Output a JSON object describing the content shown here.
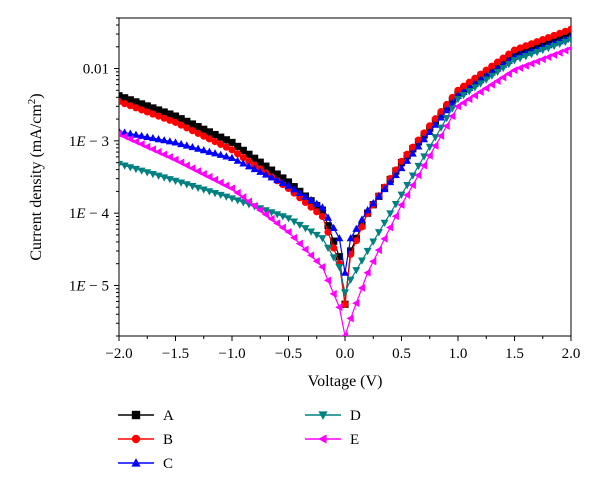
{
  "chart_data": {
    "type": "scatter",
    "xlabel": "Voltage (V)",
    "ylabel": "Current density (mA/cm²)",
    "ylabel_main": "Current density (mA/cm",
    "ylabel_sup": "2",
    "ylabel_close": ")",
    "xlim": [
      -2.0,
      2.0
    ],
    "ylim": [
      2e-06,
      0.05
    ],
    "yscale": "log",
    "grid": false,
    "legend_placement": "bottom",
    "xticks": [
      {
        "value": -2.0,
        "label": "−2.0"
      },
      {
        "value": -1.5,
        "label": "−1.5"
      },
      {
        "value": -1.0,
        "label": "−1.0"
      },
      {
        "value": -0.5,
        "label": "−0.5"
      },
      {
        "value": 0.0,
        "label": "0.0"
      },
      {
        "value": 0.5,
        "label": "0.5"
      },
      {
        "value": 1.0,
        "label": "1.0"
      },
      {
        "value": 1.5,
        "label": "1.5"
      },
      {
        "value": 2.0,
        "label": "2.0"
      }
    ],
    "yticks": [
      {
        "value": 0.01,
        "label": "0.01"
      },
      {
        "value": 0.001,
        "label": "1E − 3"
      },
      {
        "value": 0.0001,
        "label": "1E − 4"
      },
      {
        "value": 1e-05,
        "label": "1E − 5"
      }
    ],
    "series": [
      {
        "name": "A",
        "color": "#000000",
        "marker": "square",
        "x": [
          -2.0,
          -1.5,
          -1.0,
          -0.5,
          -0.2,
          -0.05,
          0.0,
          0.05,
          0.2,
          0.5,
          1.0,
          1.5,
          2.0
        ],
        "y": [
          0.0042,
          0.0022,
          0.00095,
          0.00027,
          0.00011,
          2.5e-05,
          5.5e-06,
          3e-05,
          0.0001,
          0.0005,
          0.0045,
          0.0165,
          0.032
        ]
      },
      {
        "name": "B",
        "color": "#ff0000",
        "marker": "circle",
        "x": [
          -2.0,
          -1.5,
          -1.0,
          -0.5,
          -0.2,
          -0.05,
          0.0,
          0.05,
          0.2,
          0.5,
          1.0,
          1.5,
          2.0
        ],
        "y": [
          0.0035,
          0.0018,
          0.00075,
          0.00022,
          9e-05,
          2e-05,
          5.5e-06,
          2.7e-05,
          0.0001,
          0.00052,
          0.005,
          0.018,
          0.035
        ]
      },
      {
        "name": "C",
        "color": "#0000ff",
        "marker": "triangle-up",
        "x": [
          -2.0,
          -1.5,
          -1.0,
          -0.5,
          -0.2,
          -0.05,
          0.0,
          0.05,
          0.2,
          0.5,
          1.0,
          1.5,
          2.0
        ],
        "y": [
          0.00135,
          0.00095,
          0.00058,
          0.00024,
          0.00012,
          4.5e-05,
          1.5e-05,
          4.5e-05,
          0.00011,
          0.00042,
          0.0042,
          0.0145,
          0.027
        ]
      },
      {
        "name": "D",
        "color": "#008080",
        "marker": "triangle-down",
        "x": [
          -2.0,
          -1.5,
          -1.0,
          -0.5,
          -0.2,
          -0.05,
          0.0,
          0.05,
          0.2,
          0.5,
          1.0,
          1.5,
          2.0
        ],
        "y": [
          0.00048,
          0.00028,
          0.00016,
          8.5e-05,
          4.5e-05,
          1.8e-05,
          8e-06,
          1.2e-05,
          3e-05,
          0.00018,
          0.0038,
          0.013,
          0.025
        ]
      },
      {
        "name": "E",
        "color": "#ff00ff",
        "marker": "triangle-left",
        "x": [
          -2.0,
          -1.5,
          -1.0,
          -0.5,
          -0.2,
          -0.05,
          0.0,
          0.05,
          0.2,
          0.5,
          1.0,
          1.5,
          2.0
        ],
        "y": [
          0.00125,
          0.00055,
          0.00022,
          5.5e-05,
          1.8e-05,
          5e-06,
          2e-06,
          3.5e-06,
          1.5e-05,
          0.00013,
          0.003,
          0.0095,
          0.019
        ]
      }
    ]
  }
}
